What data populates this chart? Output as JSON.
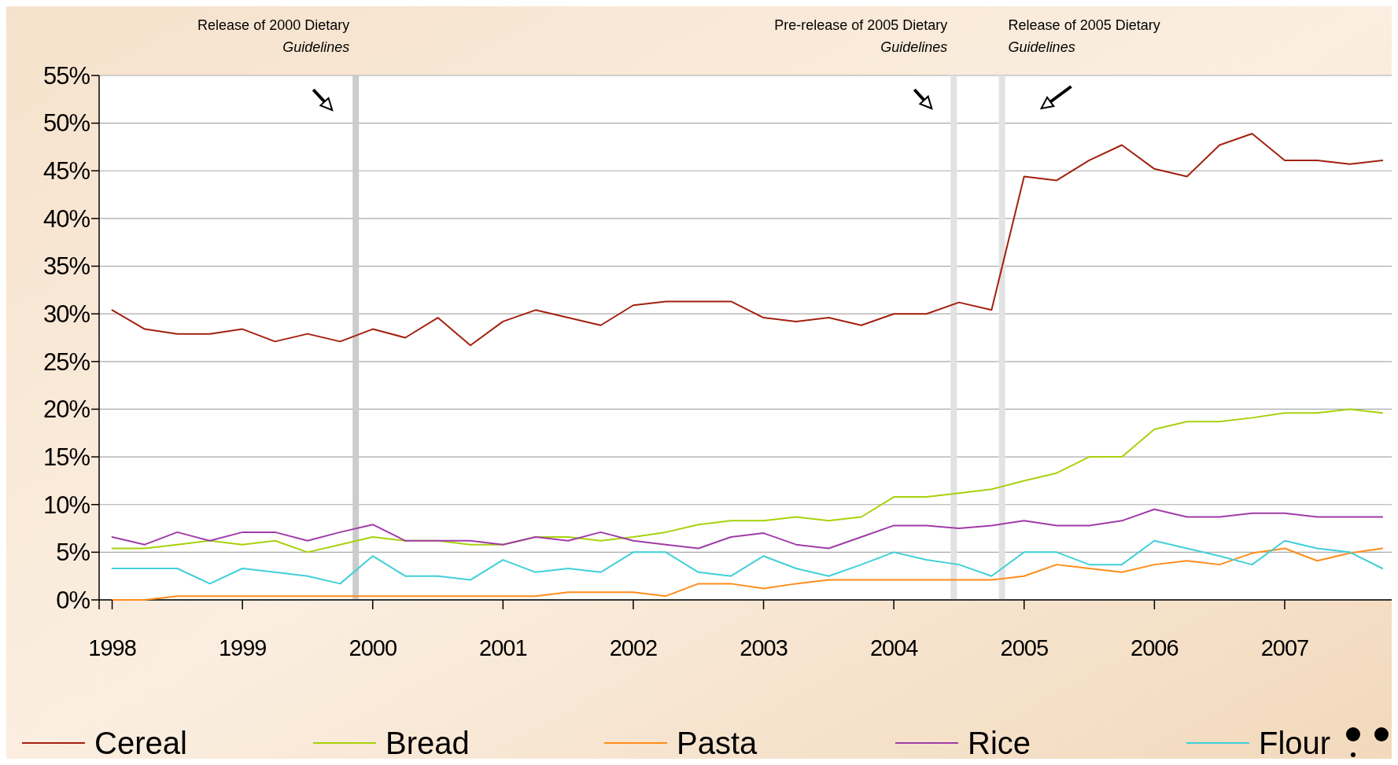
{
  "chart_data": {
    "type": "line",
    "x": [
      1998,
      1998.25,
      1998.5,
      1998.75,
      1999,
      1999.25,
      1999.5,
      1999.75,
      2000,
      2000.25,
      2000.5,
      2000.75,
      2001,
      2001.25,
      2001.5,
      2001.75,
      2002,
      2002.25,
      2002.5,
      2002.75,
      2003,
      2003.25,
      2003.5,
      2003.75,
      2004,
      2004.25,
      2004.5,
      2004.75,
      2005,
      2005.25,
      2005.5,
      2005.75,
      2006,
      2006.25,
      2006.5,
      2006.75,
      2007,
      2007.25,
      2007.5,
      2007.75
    ],
    "xlim": [
      1997.9,
      2007.9
    ],
    "xticks": [
      1998,
      1999,
      2000,
      2001,
      2002,
      2003,
      2004,
      2005,
      2006,
      2007
    ],
    "ylim": [
      0,
      55
    ],
    "yticks": [
      {
        "value": 0,
        "label": "0%"
      },
      {
        "value": 5,
        "label": "5%"
      },
      {
        "value": 10,
        "label": "10%"
      },
      {
        "value": 15,
        "label": "15%"
      },
      {
        "value": 20,
        "label": "20%"
      },
      {
        "value": 25,
        "label": "25%"
      },
      {
        "value": 30,
        "label": "30%"
      },
      {
        "value": 35,
        "label": "35%"
      },
      {
        "value": 40,
        "label": "40%"
      },
      {
        "value": 45,
        "label": "45%"
      },
      {
        "value": 50,
        "label": "50%"
      },
      {
        "value": 55,
        "label": "55%"
      }
    ],
    "grid": "y",
    "legend": "bottom",
    "series": [
      {
        "name": "Cereal",
        "color": "#a3200f",
        "values": [
          30.4,
          28.4,
          27.9,
          27.9,
          28.4,
          27.1,
          27.9,
          27.1,
          28.4,
          27.5,
          29.6,
          26.7,
          29.2,
          30.4,
          29.6,
          28.8,
          30.9,
          31.3,
          31.3,
          31.3,
          29.6,
          29.2,
          29.6,
          28.8,
          30,
          30,
          31.2,
          30.4,
          44.4,
          44,
          46.1,
          47.7,
          45.2,
          44.4,
          47.7,
          48.9,
          46.1,
          46.1,
          45.7,
          46.1
        ]
      },
      {
        "name": "Bread",
        "color": "#a8d10c",
        "values": [
          5.4,
          5.4,
          5.8,
          6.2,
          5.8,
          6.2,
          5,
          5.8,
          6.6,
          6.2,
          6.2,
          5.8,
          5.8,
          6.6,
          6.6,
          6.2,
          6.6,
          7.1,
          7.9,
          8.3,
          8.3,
          8.7,
          8.3,
          8.7,
          10.8,
          10.8,
          11.2,
          11.6,
          12.5,
          13.3,
          15,
          15,
          17.9,
          18.7,
          18.7,
          19.1,
          19.6,
          19.6,
          20,
          19.6
        ]
      },
      {
        "name": "Pasta",
        "color": "#ff8c1a",
        "values": [
          0,
          0,
          0.4,
          0.4,
          0.4,
          0.4,
          0.4,
          0.4,
          0.4,
          0.4,
          0.4,
          0.4,
          0.4,
          0.4,
          0.8,
          0.8,
          0.8,
          0.4,
          1.7,
          1.7,
          1.2,
          1.7,
          2.1,
          2.1,
          2.1,
          2.1,
          2.1,
          2.1,
          2.5,
          3.7,
          3.3,
          2.9,
          3.7,
          4.1,
          3.7,
          4.9,
          5.4,
          4.1,
          4.9,
          5.4
        ]
      },
      {
        "name": "Rice",
        "color": "#a03ca8",
        "values": [
          6.6,
          5.8,
          7.1,
          6.2,
          7.1,
          7.1,
          6.2,
          7.1,
          7.9,
          6.2,
          6.2,
          6.2,
          5.8,
          6.6,
          6.2,
          7.1,
          6.2,
          5.8,
          5.4,
          6.6,
          7,
          5.8,
          5.4,
          6.6,
          7.8,
          7.8,
          7.5,
          7.8,
          8.3,
          7.8,
          7.8,
          8.3,
          9.5,
          8.7,
          8.7,
          9.1,
          9.1,
          8.7,
          8.7,
          8.7
        ]
      },
      {
        "name": "Flour",
        "color": "#40d0d8",
        "values": [
          3.3,
          3.3,
          3.3,
          1.7,
          3.3,
          2.9,
          2.5,
          1.7,
          4.6,
          2.5,
          2.5,
          2.1,
          4.2,
          2.9,
          3.3,
          2.9,
          5,
          5,
          2.9,
          2.5,
          4.6,
          3.3,
          2.5,
          3.7,
          5,
          4.2,
          3.7,
          2.5,
          5,
          5,
          3.7,
          3.7,
          6.2,
          5.4,
          4.6,
          3.7,
          6.2,
          5.4,
          5,
          3.3
        ]
      }
    ],
    "ref_lines": [
      {
        "axis": "x",
        "value": 1999.87,
        "label": "Release of 2000 Dietary Guidelines",
        "color": "#cccccc"
      },
      {
        "axis": "x",
        "value": 2004.46,
        "label": "Pre-release of 2005 Dietary Guidelines",
        "color": "#e2e2e2"
      },
      {
        "axis": "x",
        "value": 2004.83,
        "label": "Release of 2005 Dietary Guidelines",
        "color": "#e2e2e2"
      }
    ]
  }
}
